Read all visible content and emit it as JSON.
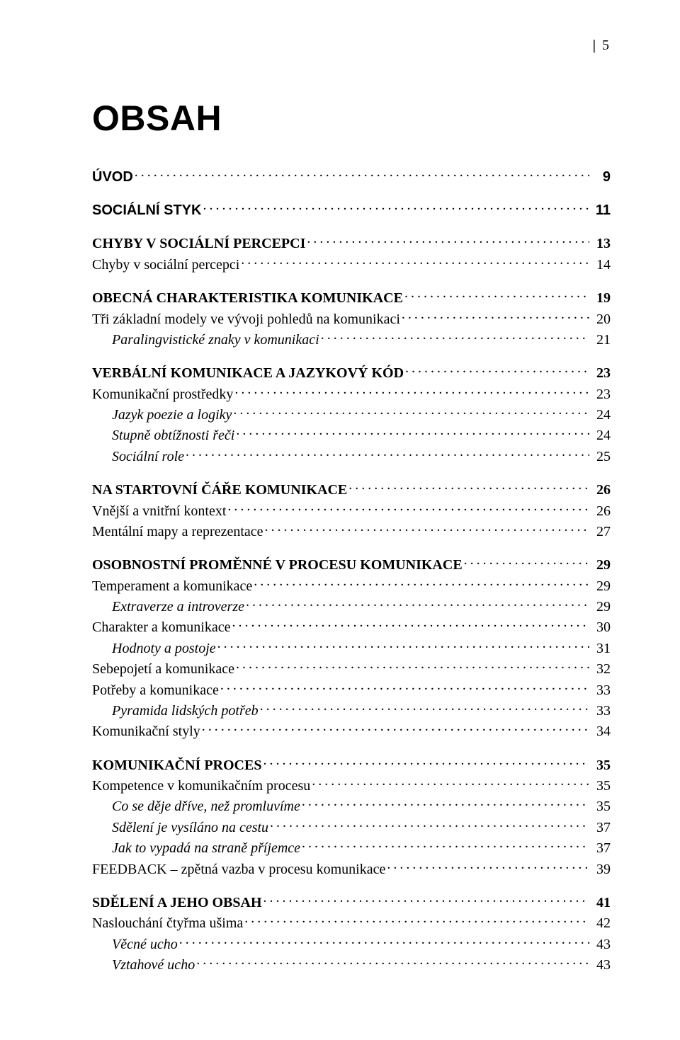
{
  "page_number_top": "5",
  "title": "OBSAH",
  "fonts": {
    "title_family": "Arial Narrow",
    "serif_family": "Times New Roman",
    "sans_family": "Arial"
  },
  "colors": {
    "text": "#000000",
    "background": "#ffffff"
  },
  "items": [
    {
      "type": "row",
      "style": "l0-sans",
      "label": "ÚVOD",
      "page": "9"
    },
    {
      "type": "gap"
    },
    {
      "type": "row",
      "style": "l0-sans",
      "label": "SOCIÁLNÍ STYK",
      "page": "11"
    },
    {
      "type": "gap"
    },
    {
      "type": "row",
      "style": "l1-bold",
      "label": "CHYBY V SOCIÁLNÍ PERCEPCI",
      "page": "13"
    },
    {
      "type": "row",
      "style": "l2",
      "label": "Chyby v sociální percepci",
      "page": "14"
    },
    {
      "type": "gap"
    },
    {
      "type": "row",
      "style": "l1-bold",
      "label": "OBECNÁ CHARAKTERISTIKA KOMUNIKACE",
      "page": "19"
    },
    {
      "type": "row",
      "style": "l2",
      "label": "Tři základní modely ve vývoji pohledů na komunikaci",
      "page": "20"
    },
    {
      "type": "row",
      "style": "l3-italic",
      "label": "Paralingvistické znaky v komunikaci",
      "page": "21"
    },
    {
      "type": "gap"
    },
    {
      "type": "row",
      "style": "l1-bold",
      "label": "VERBÁLNÍ KOMUNIKACE A JAZYKOVÝ KÓD",
      "page": "23"
    },
    {
      "type": "row",
      "style": "l2",
      "label": "Komunikační prostředky",
      "page": "23"
    },
    {
      "type": "row",
      "style": "l3-italic",
      "label": "Jazyk poezie a logiky",
      "page": "24"
    },
    {
      "type": "row",
      "style": "l3-italic",
      "label": "Stupně obtížnosti řeči",
      "page": "24"
    },
    {
      "type": "row",
      "style": "l3-italic",
      "label": "Sociální role",
      "page": "25"
    },
    {
      "type": "gap"
    },
    {
      "type": "row",
      "style": "l1-bold",
      "label": "NA STARTOVNÍ ČÁŘE KOMUNIKACE",
      "page": "26"
    },
    {
      "type": "row",
      "style": "l2",
      "label": "Vnější a vnitřní kontext",
      "page": "26"
    },
    {
      "type": "row",
      "style": "l2",
      "label": "Mentální mapy a reprezentace",
      "page": "27"
    },
    {
      "type": "gap"
    },
    {
      "type": "row",
      "style": "l1-bold",
      "label": "OSOBNOSTNÍ PROMĚNNÉ V PROCESU KOMUNIKACE",
      "page": "29"
    },
    {
      "type": "row",
      "style": "l2",
      "label": "Temperament a komunikace",
      "page": "29"
    },
    {
      "type": "row",
      "style": "l3-italic",
      "label": "Extraverze a introverze",
      "page": "29"
    },
    {
      "type": "row",
      "style": "l2",
      "label": "Charakter a komunikace",
      "page": "30"
    },
    {
      "type": "row",
      "style": "l3-italic",
      "label": "Hodnoty a postoje",
      "page": "31"
    },
    {
      "type": "row",
      "style": "l2",
      "label": "Sebepojetí a komunikace",
      "page": "32"
    },
    {
      "type": "row",
      "style": "l2",
      "label": "Potřeby a komunikace",
      "page": "33"
    },
    {
      "type": "row",
      "style": "l3-italic",
      "label": "Pyramida lidských potřeb",
      "page": "33"
    },
    {
      "type": "row",
      "style": "l2",
      "label": "Komunikační styly",
      "page": "34"
    },
    {
      "type": "gap"
    },
    {
      "type": "row",
      "style": "l1-bold",
      "label": "KOMUNIKAČNÍ PROCES",
      "page": "35"
    },
    {
      "type": "row",
      "style": "l2",
      "label": "Kompetence v komunikačním procesu",
      "page": "35"
    },
    {
      "type": "row",
      "style": "l3-italic",
      "label": "Co se děje dříve, než promluvíme",
      "page": "35"
    },
    {
      "type": "row",
      "style": "l3-italic",
      "label": "Sdělení je vysíláno na cestu",
      "page": "37"
    },
    {
      "type": "row",
      "style": "l3-italic",
      "label": "Jak to vypadá na straně příjemce",
      "page": "37"
    },
    {
      "type": "row",
      "style": "l2",
      "label": "FEEDBACK – zpětná vazba v procesu komunikace",
      "page": "39"
    },
    {
      "type": "gap"
    },
    {
      "type": "row",
      "style": "l1-bold",
      "label": "SDĚLENÍ A JEHO OBSAH",
      "page": "41"
    },
    {
      "type": "row",
      "style": "l2",
      "label": "Naslouchání čtyřma ušima",
      "page": "42"
    },
    {
      "type": "row",
      "style": "l3-italic",
      "label": "Věcné ucho",
      "page": "43"
    },
    {
      "type": "row",
      "style": "l3-italic",
      "label": "Vztahové ucho",
      "page": "43"
    }
  ]
}
